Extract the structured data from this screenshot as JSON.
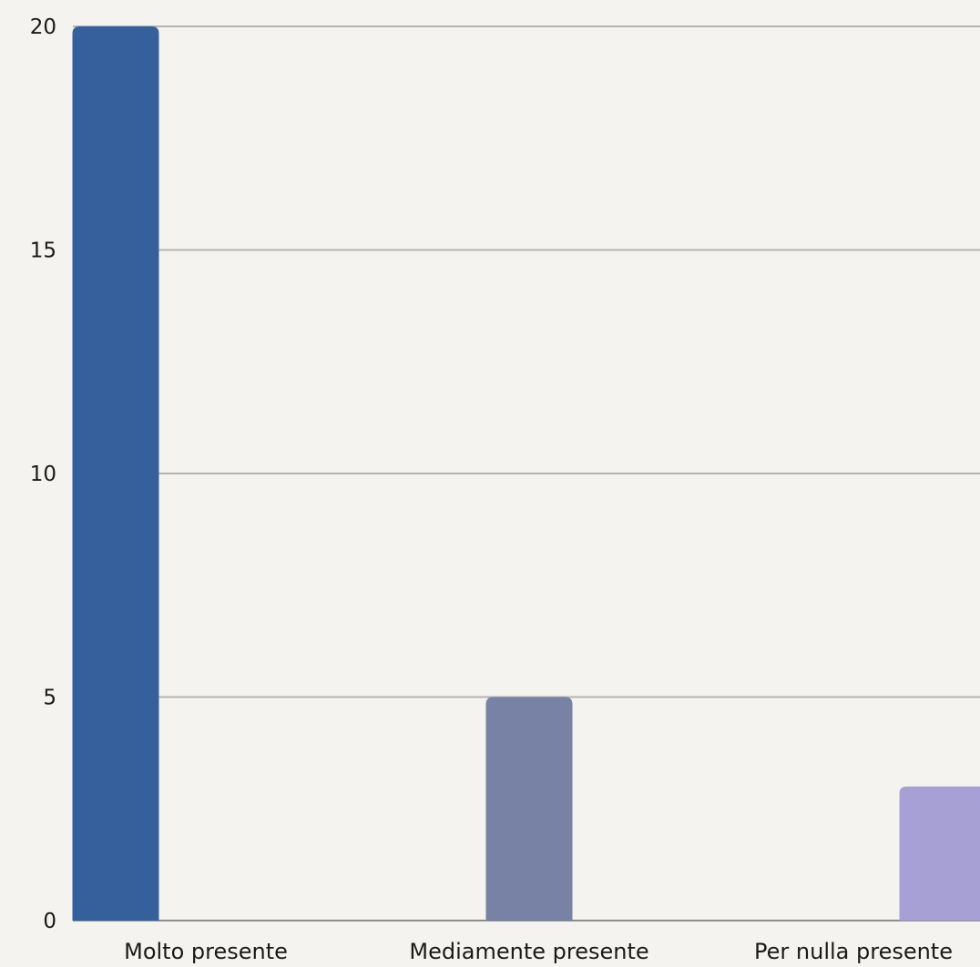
{
  "chart_data": {
    "type": "bar",
    "categories": [
      "Molto presente",
      "Mediamente presente",
      "Per nulla presente"
    ],
    "values": [
      20,
      5,
      3
    ],
    "bar_colors": [
      "#36609c",
      "#7882a4",
      "#a7a0d4"
    ],
    "yticks": [
      "0",
      "5",
      "10",
      "15",
      "20"
    ],
    "ylim": [
      0,
      20
    ],
    "grid": true,
    "background": "#f4f3ef"
  }
}
